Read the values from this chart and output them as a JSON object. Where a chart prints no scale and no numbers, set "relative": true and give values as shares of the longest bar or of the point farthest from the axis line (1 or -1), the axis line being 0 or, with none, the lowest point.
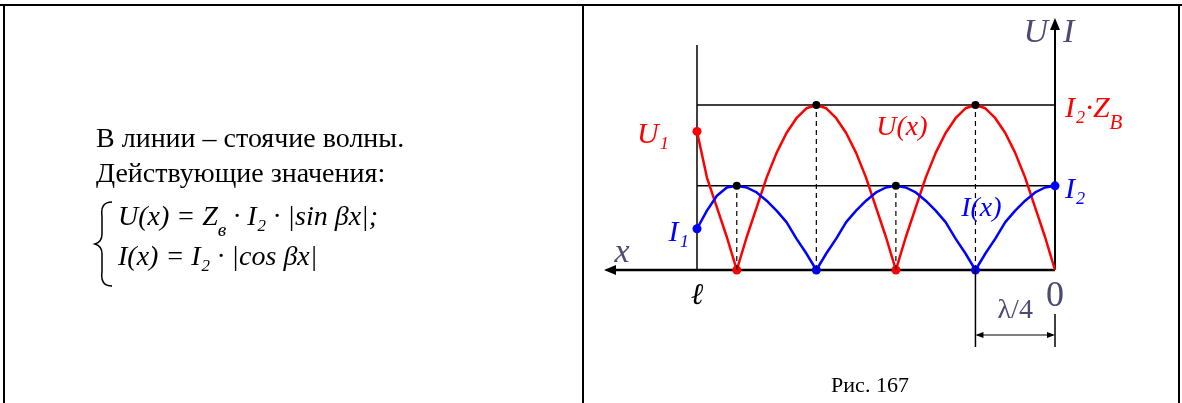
{
  "chart_data": [
    {
      "type": "other",
      "annotations": [
        "В линии – стоячие волны.",
        "Действующие значения:",
        "U(x) = Z$_{в}$ · I₂ · |sin βx|;",
        "I(x) = I₂ · |cos βx|"
      ]
    },
    {
      "type": "line",
      "relative": true,
      "xlabel": "x",
      "ylabel": "U",
      "y2label": "I",
      "categories": [
        "ℓ",
        null,
        null,
        null,
        null,
        null,
        null,
        null,
        null,
        null,
        null,
        null,
        null,
        null,
        null,
        null,
        null,
        null,
        null,
        null,
        null,
        null,
        null,
        null,
        null,
        null,
        null,
        null,
        null,
        null,
        null,
        null,
        null,
        null,
        null,
        null,
        "0"
      ],
      "series": [
        {
          "name": "U(x)",
          "type": "line",
          "color": "#ff0000",
          "values": [
            0.84,
            0.56,
            0.38,
            0.2,
            0,
            0.2,
            0.38,
            0.56,
            0.71,
            0.83,
            0.92,
            0.98,
            1,
            0.98,
            0.92,
            0.83,
            0.71,
            0.56,
            0.38,
            0.2,
            0,
            0.2,
            0.38,
            0.56,
            0.71,
            0.83,
            0.92,
            0.98,
            1,
            0.98,
            0.92,
            0.83,
            0.71,
            0.56,
            0.38,
            0.2,
            0
          ]
        },
        {
          "name": "I(x)",
          "type": "line",
          "color": "#0000ff",
          "values": [
            0.25,
            0.36,
            0.45,
            0.5,
            0.51,
            0.5,
            0.47,
            0.42,
            0.36,
            0.29,
            0.19,
            0.1,
            0,
            0.1,
            0.19,
            0.29,
            0.36,
            0.42,
            0.47,
            0.5,
            0.51,
            0.5,
            0.47,
            0.42,
            0.36,
            0.29,
            0.19,
            0.1,
            0,
            0.1,
            0.19,
            0.29,
            0.36,
            0.42,
            0.47,
            0.5,
            0.51
          ]
        },
        {
          "type": "scatter",
          "color": "#ff0000",
          "marker": "circle",
          "values": [
            0.84,
            null,
            null,
            null,
            0,
            null,
            null,
            null,
            null,
            null,
            null,
            null,
            null,
            null,
            null,
            null,
            null,
            null,
            null,
            null,
            0,
            null,
            null,
            null,
            null,
            null,
            null,
            null,
            null,
            null,
            null,
            null,
            null,
            null,
            null,
            null,
            null
          ]
        },
        {
          "type": "scatter",
          "color": "#0000ff",
          "marker": "circle",
          "values": [
            0.25,
            null,
            null,
            null,
            null,
            null,
            null,
            null,
            null,
            null,
            null,
            null,
            0,
            null,
            null,
            null,
            null,
            null,
            null,
            null,
            null,
            null,
            null,
            null,
            null,
            null,
            null,
            null,
            0,
            null,
            null,
            null,
            null,
            null,
            null,
            null,
            0.51
          ]
        },
        {
          "type": "lollipop",
          "color": "#000000",
          "line_style": "dashed",
          "values": [
            null,
            null,
            null,
            null,
            0.51,
            null,
            null,
            null,
            null,
            null,
            null,
            null,
            1,
            null,
            null,
            null,
            null,
            null,
            null,
            null,
            0.51,
            null,
            null,
            null,
            null,
            null,
            null,
            null,
            1,
            null,
            null,
            null,
            null,
            null,
            null,
            null,
            null
          ]
        }
      ],
      "ref_lines": [
        {
          "axis": "y",
          "value": 1,
          "color": "#000000"
        },
        {
          "axis": "y",
          "value": 0.51,
          "color": "#000000"
        }
      ],
      "annotations": [
        "U₁",
        "I₁",
        "I₂·Z$_{В}$",
        "I₂",
        "λ/4",
        "Рис. 167"
      ]
    }
  ]
}
